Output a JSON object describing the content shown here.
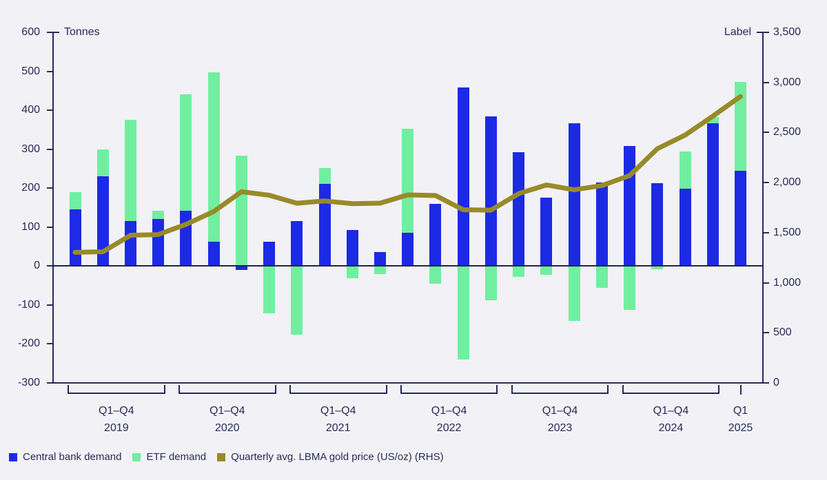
{
  "colors": {
    "background": "#f2f1f5",
    "text": "#272a58",
    "central_bank": "#1c2ae5",
    "etf": "#71efa0",
    "gold_line": "#978b29"
  },
  "chart": {
    "left_axis_title": "Tonnes",
    "right_axis_title": "Label"
  },
  "legend": {
    "items": [
      {
        "label": "Central bank demand",
        "color_key": "central_bank"
      },
      {
        "label": "ETF demand",
        "color_key": "etf"
      },
      {
        "label": "Quarterly avg. LBMA gold price (US/oz) (RHS)",
        "color_key": "gold_line"
      }
    ]
  },
  "chart_data": {
    "type": "bar",
    "subtype": "stacked-bars-with-line",
    "title": "",
    "left_axis": {
      "title": "Tonnes",
      "min": -300,
      "max": 600,
      "ticks": [
        600,
        500,
        400,
        300,
        200,
        100,
        0,
        -100,
        -200,
        -300
      ]
    },
    "right_axis": {
      "title": "Label",
      "min": 0,
      "max": 3500,
      "ticks": [
        "3,500",
        "3,000",
        "2,500",
        "2,000",
        "1,500",
        "1,000",
        "500",
        "0"
      ]
    },
    "series": [
      {
        "name": "Central bank demand",
        "axis": "left",
        "kind": "bar"
      },
      {
        "name": "ETF demand",
        "axis": "left",
        "kind": "bar"
      },
      {
        "name": "Quarterly avg. LBMA gold price (US/oz) (RHS)",
        "axis": "right",
        "kind": "line"
      }
    ],
    "groups": [
      {
        "range": "Q1–Q4",
        "year": "2019"
      },
      {
        "range": "Q1–Q4",
        "year": "2020"
      },
      {
        "range": "Q1–Q4",
        "year": "2021"
      },
      {
        "range": "Q1–Q4",
        "year": "2022"
      },
      {
        "range": "Q1–Q4",
        "year": "2023"
      },
      {
        "range": "Q1–Q4",
        "year": "2024"
      },
      {
        "range": "Q1",
        "year": "2025"
      }
    ],
    "quarters": [
      {
        "year": 2019,
        "quarter": "Q1",
        "central_bank": 145,
        "etf": 45,
        "gold_price": 1304
      },
      {
        "year": 2019,
        "quarter": "Q2",
        "central_bank": 230,
        "etf": 70,
        "gold_price": 1309
      },
      {
        "year": 2019,
        "quarter": "Q3",
        "central_bank": 115,
        "etf": 260,
        "gold_price": 1474
      },
      {
        "year": 2019,
        "quarter": "Q4",
        "central_bank": 120,
        "etf": 22,
        "gold_price": 1481
      },
      {
        "year": 2020,
        "quarter": "Q1",
        "central_bank": 142,
        "etf": 298,
        "gold_price": 1583
      },
      {
        "year": 2020,
        "quarter": "Q2",
        "central_bank": 63,
        "etf": 435,
        "gold_price": 1711
      },
      {
        "year": 2020,
        "quarter": "Q3",
        "central_bank": -10,
        "etf": 283,
        "gold_price": 1909
      },
      {
        "year": 2020,
        "quarter": "Q4",
        "central_bank": 63,
        "etf": -122,
        "gold_price": 1874
      },
      {
        "year": 2021,
        "quarter": "Q1",
        "central_bank": 116,
        "etf": -177,
        "gold_price": 1794
      },
      {
        "year": 2021,
        "quarter": "Q2",
        "central_bank": 211,
        "etf": 40,
        "gold_price": 1817
      },
      {
        "year": 2021,
        "quarter": "Q3",
        "central_bank": 93,
        "etf": -32,
        "gold_price": 1790
      },
      {
        "year": 2021,
        "quarter": "Q4",
        "central_bank": 36,
        "etf": -20,
        "gold_price": 1795
      },
      {
        "year": 2022,
        "quarter": "Q1",
        "central_bank": 85,
        "etf": 268,
        "gold_price": 1877
      },
      {
        "year": 2022,
        "quarter": "Q2",
        "central_bank": 159,
        "etf": -46,
        "gold_price": 1871
      },
      {
        "year": 2022,
        "quarter": "Q3",
        "central_bank": 459,
        "etf": -240,
        "gold_price": 1729
      },
      {
        "year": 2022,
        "quarter": "Q4",
        "central_bank": 384,
        "etf": -88,
        "gold_price": 1725
      },
      {
        "year": 2023,
        "quarter": "Q1",
        "central_bank": 292,
        "etf": -28,
        "gold_price": 1890
      },
      {
        "year": 2023,
        "quarter": "Q2",
        "central_bank": 176,
        "etf": -22,
        "gold_price": 1976
      },
      {
        "year": 2023,
        "quarter": "Q3",
        "central_bank": 366,
        "etf": -140,
        "gold_price": 1928
      },
      {
        "year": 2023,
        "quarter": "Q4",
        "central_bank": 215,
        "etf": -56,
        "gold_price": 1971
      },
      {
        "year": 2024,
        "quarter": "Q1",
        "central_bank": 309,
        "etf": -113,
        "gold_price": 2070
      },
      {
        "year": 2024,
        "quarter": "Q2",
        "central_bank": 212,
        "etf": -8,
        "gold_price": 2338
      },
      {
        "year": 2024,
        "quarter": "Q3",
        "central_bank": 199,
        "etf": 95,
        "gold_price": 2474
      },
      {
        "year": 2024,
        "quarter": "Q4",
        "central_bank": 367,
        "etf": 16,
        "gold_price": 2663
      },
      {
        "year": 2025,
        "quarter": "Q1",
        "central_bank": 244,
        "etf": 228,
        "gold_price": 2860
      }
    ]
  }
}
